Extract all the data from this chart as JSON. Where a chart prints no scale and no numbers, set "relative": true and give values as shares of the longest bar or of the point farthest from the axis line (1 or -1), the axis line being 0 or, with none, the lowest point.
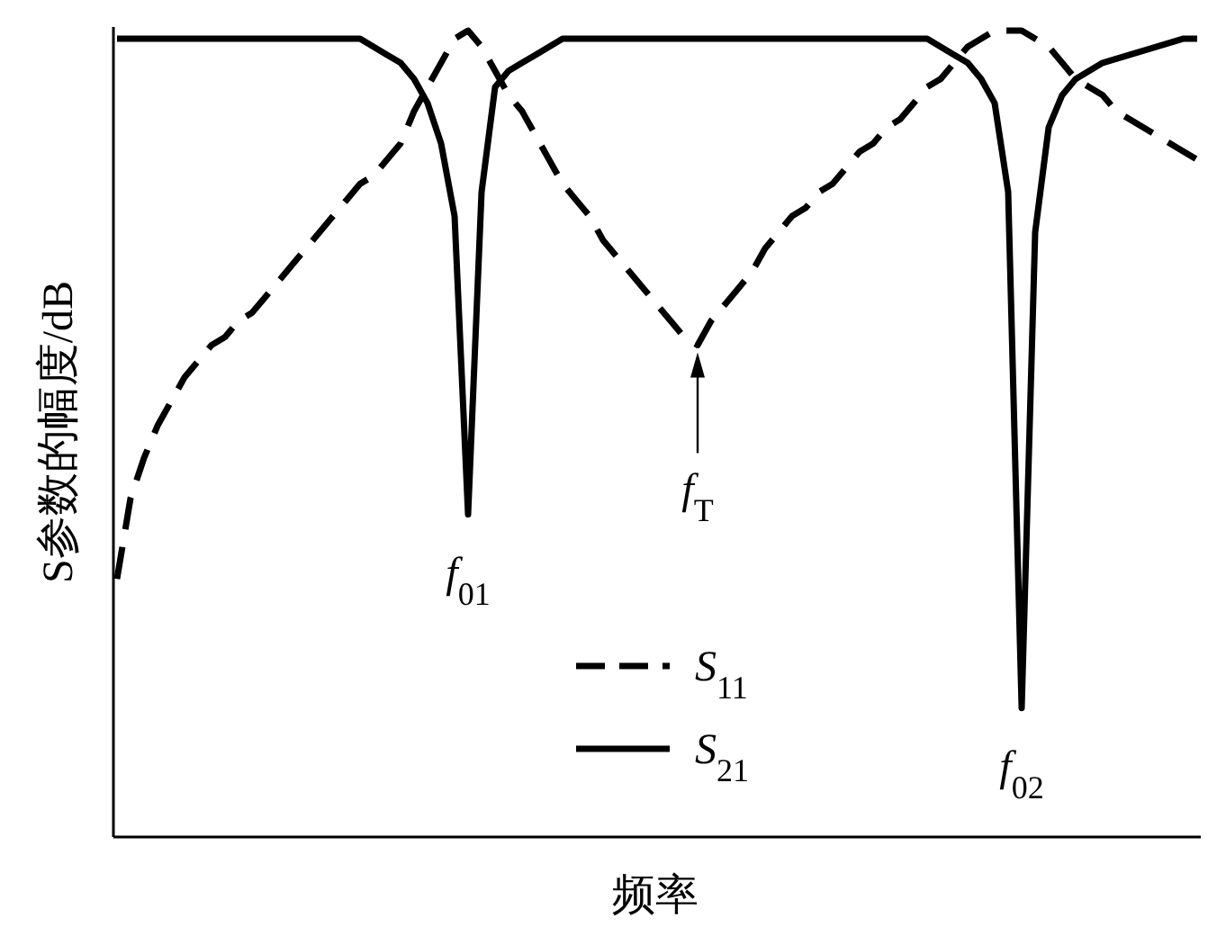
{
  "chart_data": {
    "type": "line",
    "relative": true,
    "xlabel": "频率",
    "ylabel": "S参数的幅度/dB",
    "legend": "bottom",
    "grid": false,
    "categories": [
      null,
      null,
      null,
      null,
      null,
      null,
      null,
      null,
      null,
      null,
      null,
      null,
      null,
      null,
      null,
      null,
      null,
      null,
      null,
      null,
      null,
      null,
      null,
      null,
      null,
      null,
      null,
      null,
      null,
      null,
      null,
      null,
      null,
      null,
      null,
      null,
      null,
      null,
      null,
      null,
      null,
      null,
      null,
      null,
      null,
      null,
      null,
      null,
      null,
      null,
      null,
      null,
      null,
      null,
      null,
      null,
      null,
      null,
      null,
      null,
      null,
      null,
      null,
      null,
      null,
      null,
      null,
      null,
      null,
      null,
      null,
      null,
      null,
      null,
      null,
      null,
      null,
      null,
      null,
      null,
      null
    ],
    "series": [
      {
        "name": "S$_{11}$",
        "color": "#000000",
        "line_style": "dashed",
        "values": [
          0.32,
          0.42,
          0.47,
          0.51,
          0.54,
          0.57,
          0.59,
          0.61,
          0.62,
          0.64,
          0.65,
          0.67,
          0.69,
          0.71,
          0.73,
          0.75,
          0.77,
          0.79,
          0.81,
          0.82,
          0.84,
          0.86,
          0.9,
          0.93,
          0.96,
          0.99,
          1.0,
          0.98,
          0.95,
          0.92,
          0.9,
          0.87,
          0.84,
          0.81,
          0.79,
          0.77,
          0.74,
          0.72,
          0.7,
          0.68,
          0.66,
          0.64,
          0.62,
          0.61,
          0.64,
          0.66,
          0.68,
          0.7,
          0.73,
          0.75,
          0.77,
          0.78,
          0.8,
          0.81,
          0.83,
          0.85,
          0.86,
          0.88,
          0.89,
          0.91,
          0.93,
          0.94,
          0.96,
          0.98,
          0.99,
          1.0,
          1.0,
          1.0,
          0.99,
          0.98,
          0.96,
          0.94,
          0.93,
          0.92,
          0.9,
          0.89,
          0.88,
          0.87,
          0.86,
          0.85,
          0.84
        ]
      },
      {
        "name": "S$_{21}$",
        "color": "#000000",
        "line_style": "solid",
        "values": [
          0.99,
          0.99,
          0.99,
          0.99,
          0.99,
          0.99,
          0.99,
          0.99,
          0.99,
          0.99,
          0.99,
          0.99,
          0.99,
          0.99,
          0.99,
          0.99,
          0.99,
          0.99,
          0.99,
          0.98,
          0.97,
          0.96,
          0.94,
          0.91,
          0.86,
          0.77,
          0.4,
          0.8,
          0.93,
          0.95,
          0.96,
          0.97,
          0.98,
          0.99,
          0.99,
          0.99,
          0.99,
          0.99,
          0.99,
          0.99,
          0.99,
          0.99,
          0.99,
          0.99,
          0.99,
          0.99,
          0.99,
          0.99,
          0.99,
          0.99,
          0.99,
          0.99,
          0.99,
          0.99,
          0.99,
          0.99,
          0.99,
          0.99,
          0.99,
          0.99,
          0.99,
          0.98,
          0.97,
          0.96,
          0.94,
          0.91,
          0.8,
          0.16,
          0.75,
          0.88,
          0.92,
          0.94,
          0.95,
          0.96,
          0.965,
          0.97,
          0.975,
          0.98,
          0.985,
          0.99,
          0.99
        ]
      }
    ],
    "annotations": [
      {
        "text": "f$_{01}$",
        "y": 0.4
      },
      {
        "text": "f$_{T}$",
        "y": 0.61
      },
      {
        "text": "f$_{02}$",
        "y": 0.16
      }
    ]
  }
}
